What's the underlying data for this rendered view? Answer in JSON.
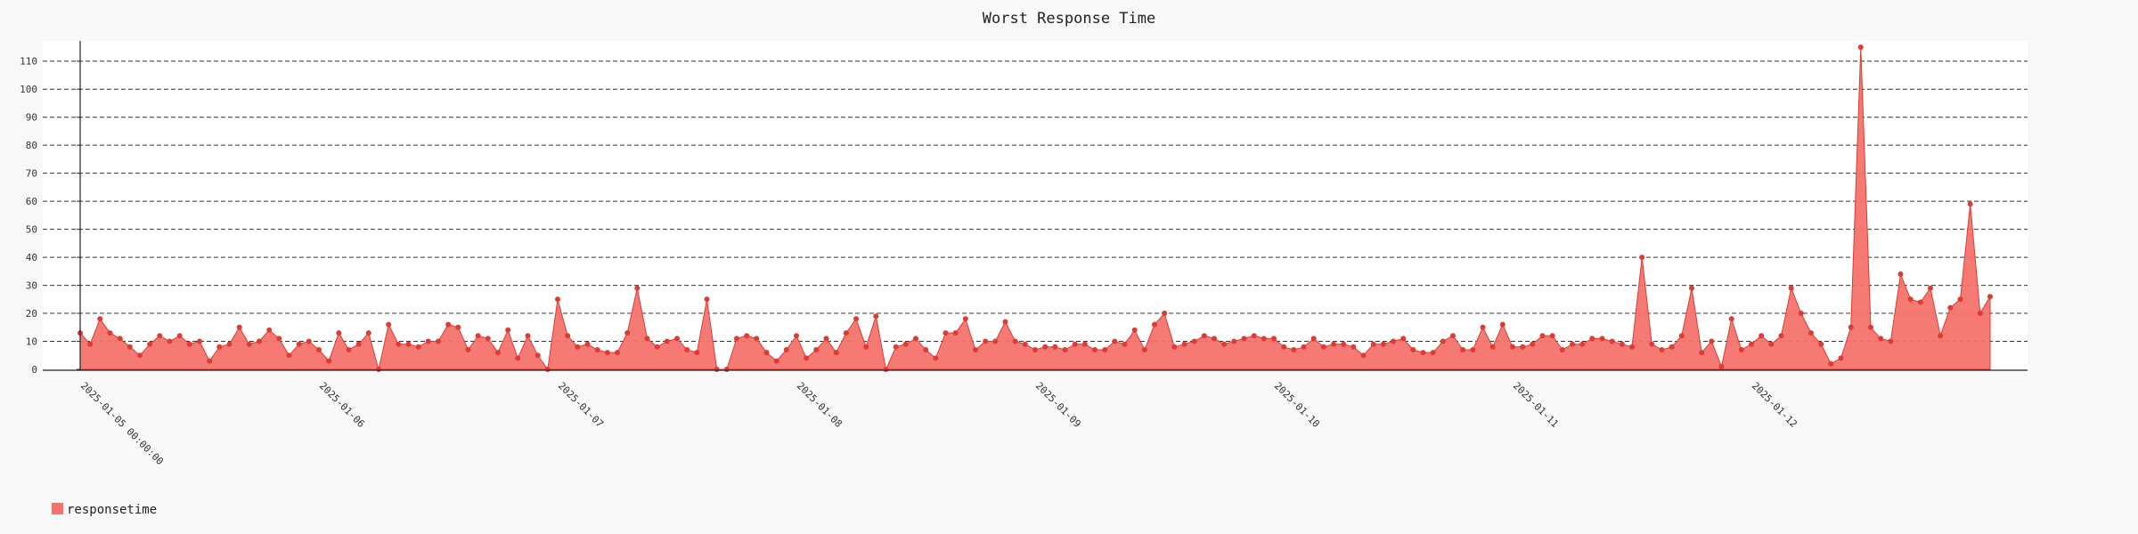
{
  "chart_data": {
    "type": "area",
    "title": "Worst Response Time",
    "xlabel": "",
    "ylabel": "",
    "ylim": [
      0,
      118
    ],
    "y_ticks": [
      0,
      10,
      20,
      30,
      40,
      50,
      60,
      70,
      80,
      90,
      100,
      110
    ],
    "grid": true,
    "legend_position": "bottom-left",
    "x_tick_labels": [
      "2025-01-05 00:00:00",
      "2025-01-06",
      "2025-01-07",
      "2025-01-08",
      "2025-01-09",
      "2025-01-10",
      "2025-01-11",
      "2025-01-12"
    ],
    "x_tick_indices": [
      0,
      24,
      48,
      72,
      96,
      120,
      144,
      168
    ],
    "series": [
      {
        "name": "responsetime",
        "color": "#f4736b",
        "stroke": "#dd3b33",
        "values": [
          13,
          9,
          18,
          13,
          11,
          8,
          5,
          9,
          12,
          10,
          12,
          9,
          10,
          3,
          8,
          9,
          15,
          9,
          10,
          14,
          11,
          5,
          9,
          10,
          7,
          3,
          13,
          7,
          9,
          13,
          0,
          16,
          9,
          9,
          8,
          10,
          10,
          16,
          15,
          7,
          12,
          11,
          6,
          14,
          4,
          12,
          5,
          0,
          25,
          12,
          8,
          9,
          7,
          6,
          6,
          13,
          29,
          11,
          8,
          10,
          11,
          7,
          6,
          25,
          0,
          0,
          11,
          12,
          11,
          6,
          3,
          7,
          12,
          4,
          7,
          11,
          6,
          13,
          18,
          8,
          19,
          0,
          8,
          9,
          11,
          7,
          4,
          13,
          13,
          18,
          7,
          10,
          10,
          17,
          10,
          9,
          7,
          8,
          8,
          7,
          9,
          9,
          7,
          7,
          10,
          9,
          14,
          7,
          16,
          20,
          8,
          9,
          10,
          12,
          11,
          9,
          10,
          11,
          12,
          11,
          11,
          8,
          7,
          8,
          11,
          8,
          9,
          9,
          8,
          5,
          9,
          9,
          10,
          11,
          7,
          6,
          6,
          10,
          12,
          7,
          7,
          15,
          8,
          16,
          8,
          8,
          9,
          12,
          12,
          7,
          9,
          9,
          11,
          11,
          10,
          9,
          8,
          40,
          9,
          7,
          8,
          12,
          29,
          6,
          10,
          1,
          18,
          7,
          9,
          12,
          9,
          12,
          29,
          20,
          13,
          9,
          2,
          4,
          15,
          115,
          15,
          11,
          10,
          34,
          25,
          24,
          29,
          12,
          22,
          25,
          59,
          20,
          26
        ]
      }
    ]
  }
}
